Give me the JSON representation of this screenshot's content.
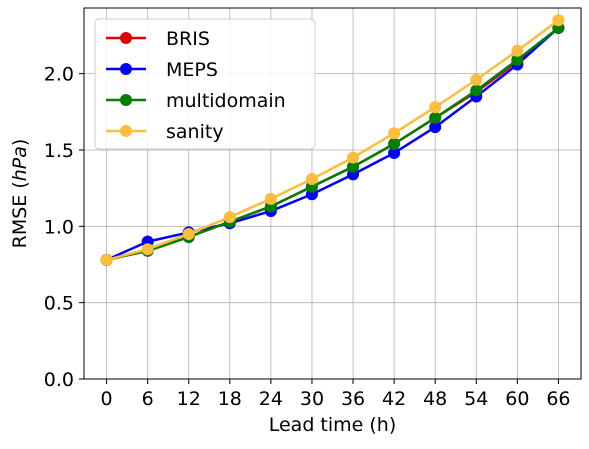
{
  "chart_data": {
    "type": "line",
    "xlabel": "Lead time (h)",
    "ylabel_main": "RMSE (",
    "ylabel_unit": "hPa",
    "ylabel_close": ")",
    "x": [
      0,
      6,
      12,
      18,
      24,
      30,
      36,
      42,
      48,
      54,
      60,
      66
    ],
    "x_tick_labels": [
      "0",
      "6",
      "12",
      "18",
      "24",
      "30",
      "36",
      "42",
      "48",
      "54",
      "60",
      "66"
    ],
    "xlim": [
      -3.3,
      69.3
    ],
    "ylim": [
      0.0,
      2.43
    ],
    "y_ticks": [
      0.0,
      0.5,
      1.0,
      1.5,
      2.0
    ],
    "y_tick_labels": [
      "0.0",
      "0.5",
      "1.0",
      "1.5",
      "2.0"
    ],
    "grid": true,
    "legend_position": "top-left",
    "series": [
      {
        "name": "BRIS",
        "color": "#e00000",
        "values": [
          0.78,
          0.84,
          0.93,
          1.03,
          1.13,
          1.26,
          1.39,
          1.54,
          1.71,
          1.88,
          2.08,
          2.3
        ]
      },
      {
        "name": "MEPS",
        "color": "#0000ff",
        "values": [
          0.78,
          0.9,
          0.96,
          1.02,
          1.1,
          1.21,
          1.34,
          1.48,
          1.65,
          1.85,
          2.06,
          2.3
        ]
      },
      {
        "name": "multidomain",
        "color": "#008000",
        "values": [
          0.78,
          0.84,
          0.93,
          1.03,
          1.13,
          1.26,
          1.39,
          1.54,
          1.71,
          1.89,
          2.09,
          2.3
        ]
      },
      {
        "name": "sanity",
        "color": "#fbbd3a",
        "values": [
          0.78,
          0.85,
          0.95,
          1.06,
          1.18,
          1.31,
          1.45,
          1.61,
          1.78,
          1.96,
          2.15,
          2.35
        ]
      }
    ]
  }
}
